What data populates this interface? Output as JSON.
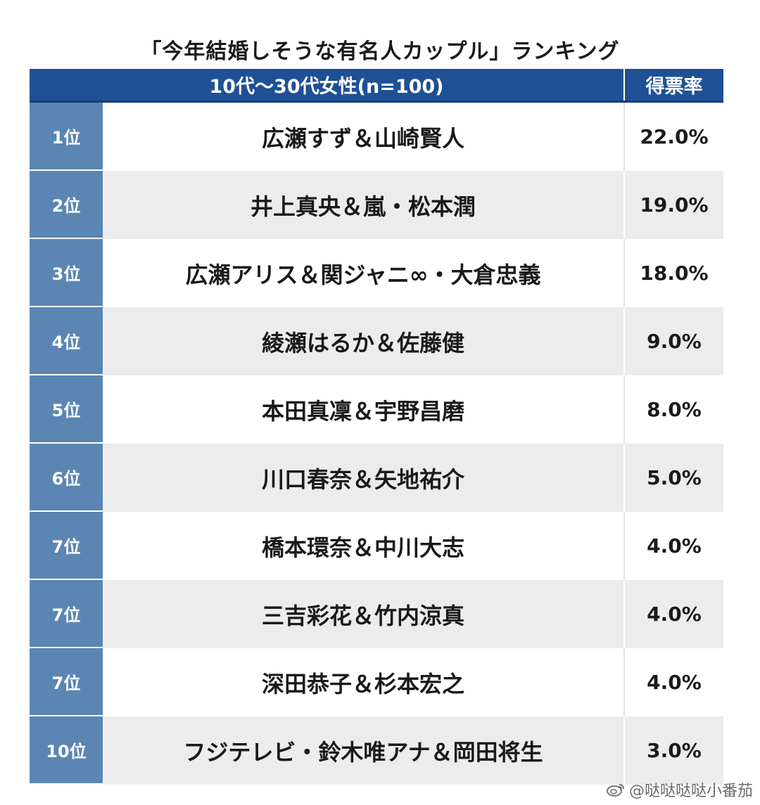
{
  "chart_data": {
    "type": "table",
    "title": "「今年結婚しそうな有名人カップル」ランキング",
    "columns": [
      "10代〜30代女性(n=100)",
      "得票率"
    ],
    "rows": [
      {
        "rank": "1位",
        "name": "広瀬すず＆山崎賢人",
        "pct": "22.0%",
        "value": 22.0
      },
      {
        "rank": "2位",
        "name": "井上真央＆嵐・松本潤",
        "pct": "19.0%",
        "value": 19.0
      },
      {
        "rank": "3位",
        "name": "広瀬アリス＆関ジャニ∞・大倉忠義",
        "pct": "18.0%",
        "value": 18.0
      },
      {
        "rank": "4位",
        "name": "綾瀬はるか＆佐藤健",
        "pct": "9.0%",
        "value": 9.0
      },
      {
        "rank": "5位",
        "name": "本田真凜＆宇野昌磨",
        "pct": "8.0%",
        "value": 8.0
      },
      {
        "rank": "6位",
        "name": "川口春奈＆矢地祐介",
        "pct": "5.0%",
        "value": 5.0
      },
      {
        "rank": "7位",
        "name": "橋本環奈＆中川大志",
        "pct": "4.0%",
        "value": 4.0
      },
      {
        "rank": "7位",
        "name": "三吉彩花＆竹内涼真",
        "pct": "4.0%",
        "value": 4.0
      },
      {
        "rank": "7位",
        "name": "深田恭子＆杉本宏之",
        "pct": "4.0%",
        "value": 4.0
      },
      {
        "rank": "10位",
        "name": "フジテレビ・鈴木唯アナ＆岡田将生",
        "pct": "3.0%",
        "value": 3.0
      }
    ]
  },
  "watermark": {
    "text": "@哒哒哒哒小番茄",
    "icon": "weibo-icon"
  },
  "colors": {
    "header_bg": "#1f5096",
    "rank_bg": "#5b86b3",
    "row_alt_bg": "#ececec"
  }
}
